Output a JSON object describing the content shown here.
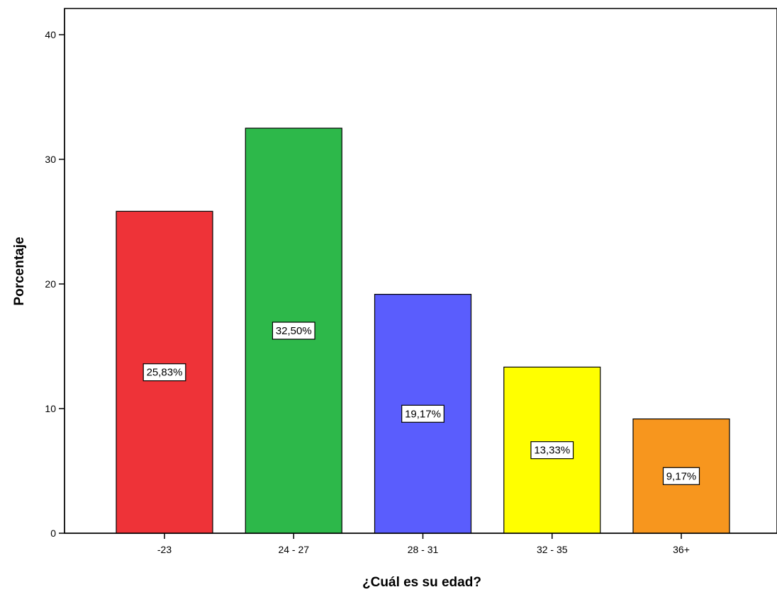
{
  "chart_data": {
    "type": "bar",
    "title": "",
    "xlabel": "¿Cuál es su edad?",
    "ylabel": "Porcentaje",
    "categories": [
      "-23",
      "24 - 27",
      "28 - 31",
      "32 - 35",
      "36+"
    ],
    "values": [
      25.83,
      32.5,
      19.17,
      13.33,
      9.17
    ],
    "data_labels": [
      "25,83%",
      "32,50%",
      "19,17%",
      "13,33%",
      "9,17%"
    ],
    "colors": [
      "#ee3338",
      "#2db84a",
      "#5a5dfd",
      "#ffff00",
      "#f7961e"
    ],
    "ylim": [
      0,
      40
    ],
    "yticks": [
      0,
      10,
      20,
      30,
      40
    ],
    "ytick_labels": [
      "0",
      "10",
      "20",
      "30",
      "40"
    ],
    "grid": false,
    "legend": "none"
  }
}
